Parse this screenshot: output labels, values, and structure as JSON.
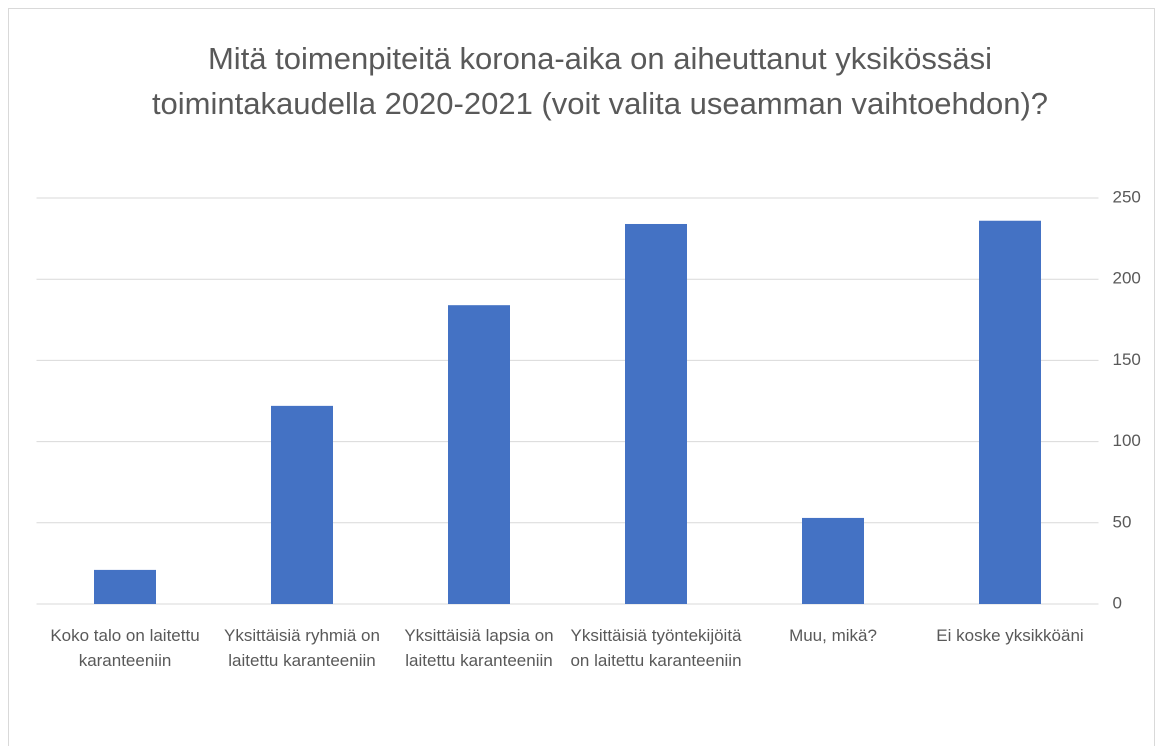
{
  "chart_data": {
    "type": "bar",
    "title": "Mitä toimenpiteitä korona-aika on aiheuttanut yksikössäsi toimintakaudella 2020-2021 (voit valita useamman vaihtoehdon)?",
    "categories": [
      "Koko talo on laitettu karanteeniin",
      "Yksittäisiä ryhmiä on laitettu karanteeniin",
      "Yksittäisiä lapsia on laitettu karanteeniin",
      "Yksittäisiä työntekijöitä on laitettu karanteeniin",
      "Muu, mikä?",
      "Ei koske yksikköäni"
    ],
    "values": [
      21,
      122,
      184,
      234,
      53,
      236
    ],
    "color": "#4472c4",
    "ylim": [
      0,
      250
    ],
    "yticks": [
      0,
      50,
      100,
      150,
      200,
      250
    ],
    "grid": true,
    "y_axis_side": "right"
  }
}
